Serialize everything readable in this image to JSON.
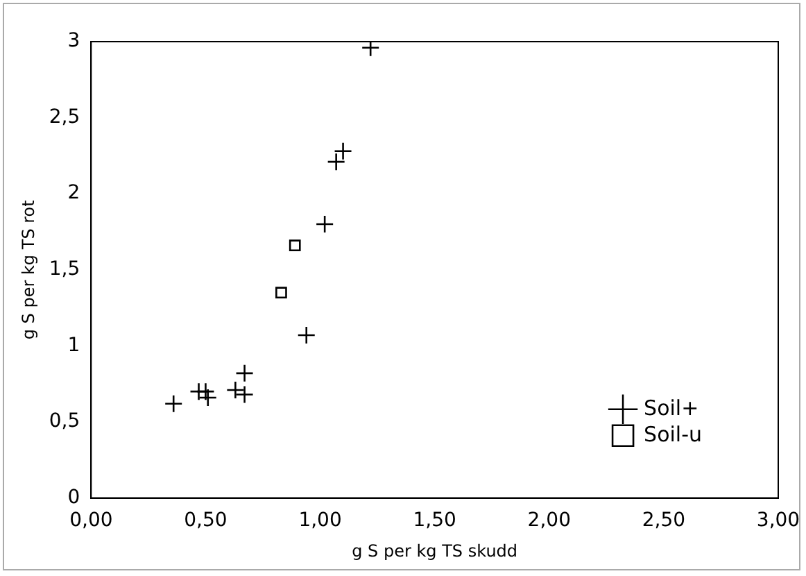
{
  "chart_data": {
    "type": "scatter",
    "xlabel": "g S per kg TS skudd",
    "ylabel": "g S per kg TS rot",
    "xlim": [
      0,
      3
    ],
    "xticks": [
      {
        "value": 0,
        "label": "0,00"
      },
      {
        "value": 0.5,
        "label": "0,50"
      },
      {
        "value": 1,
        "label": "1,00"
      },
      {
        "value": 1.5,
        "label": "1,50"
      },
      {
        "value": 2,
        "label": "2,00"
      },
      {
        "value": 2.5,
        "label": "2,50"
      },
      {
        "value": 3,
        "label": "3,00"
      }
    ],
    "ylim": [
      0,
      3
    ],
    "yticks": [
      0,
      {
        "value": 0.5,
        "label": "0,5"
      },
      1,
      {
        "value": 1.5,
        "label": "1,5"
      },
      2,
      {
        "value": 2.5,
        "label": "2,5"
      },
      3
    ],
    "grid": false,
    "legend": "right",
    "series": [
      {
        "name": "Soil+",
        "color": "#000000",
        "marker": "cross",
        "x": [
          0.36,
          0.47,
          0.5,
          0.51,
          0.63,
          0.67,
          0.67,
          0.94,
          1.02,
          1.07,
          1.1,
          1.22
        ],
        "values": [
          0.62,
          0.7,
          0.7,
          0.66,
          0.71,
          0.82,
          0.68,
          1.07,
          1.8,
          2.21,
          2.28,
          2.96
        ]
      },
      {
        "name": "Soil-u",
        "color": "#000000",
        "marker": "square",
        "x": [
          0.83,
          0.89
        ],
        "values": [
          1.35,
          1.66
        ]
      }
    ]
  }
}
